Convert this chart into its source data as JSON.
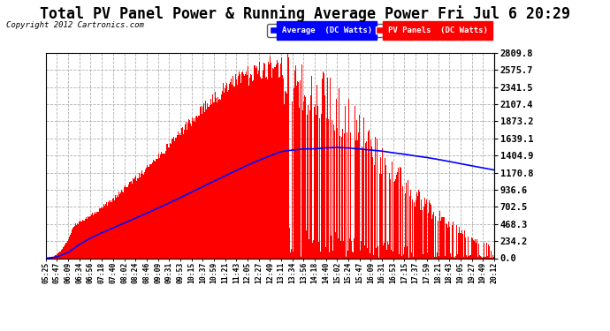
{
  "title": "Total PV Panel Power & Running Average Power Fri Jul 6 20:29",
  "copyright": "Copyright 2012 Cartronics.com",
  "ylabel_ticks": [
    0.0,
    234.2,
    468.3,
    702.5,
    936.6,
    1170.8,
    1404.9,
    1639.1,
    1873.2,
    2107.4,
    2341.5,
    2575.7,
    2809.8
  ],
  "ymax": 2809.8,
  "ymin": 0.0,
  "legend_avg_label": "Average  (DC Watts)",
  "legend_pv_label": "PV Panels  (DC Watts)",
  "avg_color": "#0000ff",
  "pv_color": "#ff0000",
  "bg_color": "#ffffff",
  "plot_bg_color": "#ffffff",
  "grid_color": "#b0b0b0",
  "xtick_labels": [
    "05:25",
    "05:47",
    "06:09",
    "06:34",
    "06:56",
    "07:18",
    "07:40",
    "08:02",
    "08:24",
    "08:46",
    "09:09",
    "09:31",
    "09:53",
    "10:15",
    "10:37",
    "10:59",
    "11:21",
    "11:43",
    "12:05",
    "12:27",
    "12:49",
    "13:11",
    "13:34",
    "13:56",
    "14:18",
    "14:40",
    "15:02",
    "15:24",
    "15:47",
    "16:09",
    "16:31",
    "16:53",
    "17:15",
    "17:37",
    "17:59",
    "18:21",
    "18:43",
    "19:05",
    "19:27",
    "19:49",
    "20:12"
  ]
}
